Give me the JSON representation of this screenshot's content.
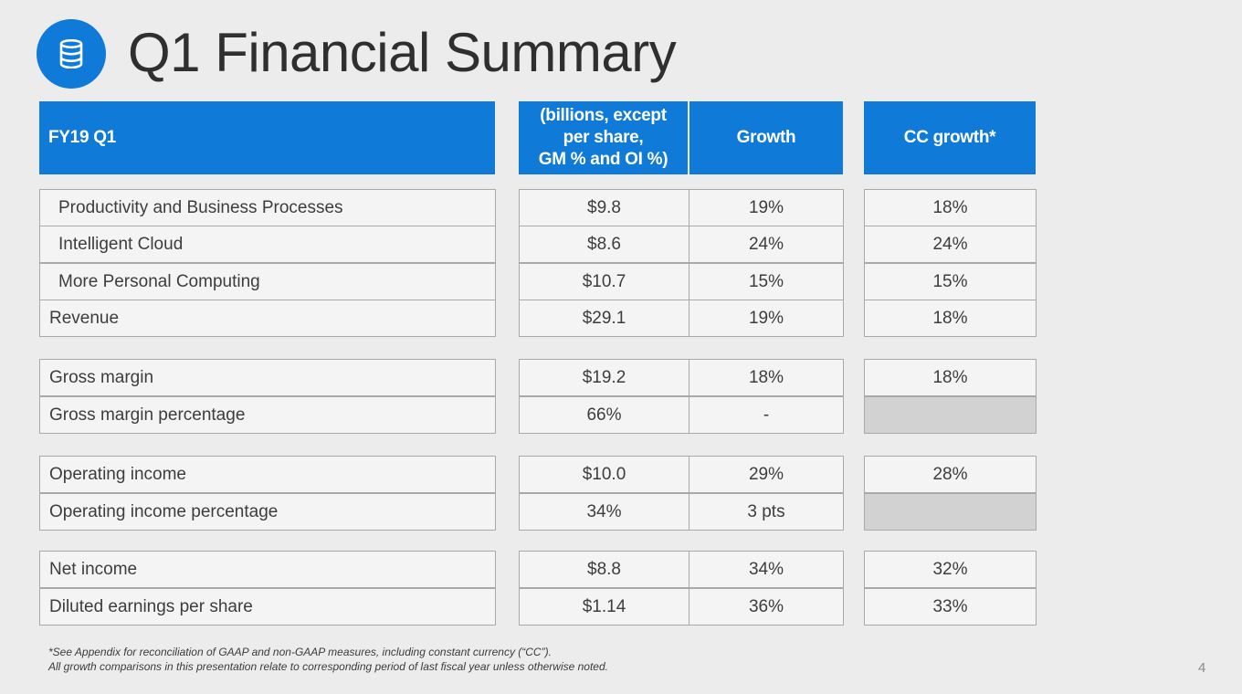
{
  "title": "Q1 Financial Summary",
  "icon": "database-icon",
  "accent_color": "#0f7ad8",
  "table": {
    "headers": {
      "label": "FY19 Q1",
      "value": "(billions, except\nper share,\nGM % and OI %)",
      "growth": "Growth",
      "cc_growth": "CC growth*"
    },
    "rows": [
      {
        "label": "Productivity and Business Processes",
        "value": "$9.8",
        "growth": "19%",
        "cc_growth": "18%"
      },
      {
        "label": "Intelligent Cloud",
        "value": "$8.6",
        "growth": "24%",
        "cc_growth": "24%"
      },
      {
        "label": "More Personal Computing",
        "value": "$10.7",
        "growth": "15%",
        "cc_growth": "15%"
      },
      {
        "label": "Revenue",
        "value": "$29.1",
        "growth": "19%",
        "cc_growth": "18%"
      },
      {
        "label": "Gross margin",
        "value": "$19.2",
        "growth": "18%",
        "cc_growth": "18%"
      },
      {
        "label": "Gross margin percentage",
        "value": "66%",
        "growth": "-",
        "cc_growth": ""
      },
      {
        "label": "Operating income",
        "value": "$10.0",
        "growth": "29%",
        "cc_growth": "28%"
      },
      {
        "label": "Operating income percentage",
        "value": "34%",
        "growth": "3 pts",
        "cc_growth": ""
      },
      {
        "label": "Net income",
        "value": "$8.8",
        "growth": "34%",
        "cc_growth": "32%"
      },
      {
        "label": "Diluted earnings per share",
        "value": "$1.14",
        "growth": "36%",
        "cc_growth": "33%"
      }
    ]
  },
  "footnote": {
    "line1": "*See Appendix for reconciliation of GAAP and non-GAAP measures, including constant currency (“CC”).",
    "line2": "All growth comparisons in this presentation relate to corresponding period of last fiscal year unless otherwise noted."
  },
  "page_number": "4"
}
